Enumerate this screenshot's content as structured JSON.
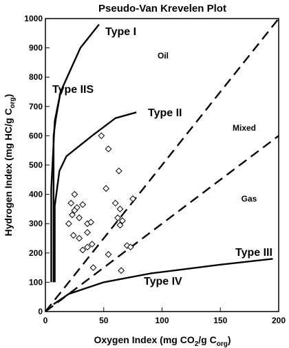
{
  "chart_data": {
    "type": "scatter",
    "title": "Pseudo-Van Krevelen Plot",
    "xlabel": {
      "main": "Oxygen Index (mg CO",
      "sub1": "2",
      "mid": "/g C",
      "sub2": "org",
      "end": ")"
    },
    "ylabel": {
      "main": "Hydrogen Index (mg HC/g C",
      "sub": "org",
      "end": ")"
    },
    "xlim": [
      0,
      200
    ],
    "ylim": [
      0,
      1000
    ],
    "xticks": [
      0,
      50,
      100,
      150,
      200
    ],
    "yticks": [
      0,
      100,
      200,
      300,
      400,
      500,
      600,
      700,
      800,
      900,
      1000
    ],
    "grid": false,
    "type_curves": [
      {
        "name": "Type I",
        "points": [
          [
            5,
            100
          ],
          [
            5,
            420
          ],
          [
            8,
            650
          ],
          [
            13,
            750
          ],
          [
            30,
            900
          ],
          [
            46,
            980
          ]
        ]
      },
      {
        "name": "Type IIS",
        "points": [
          [
            8,
            100
          ],
          [
            8,
            360
          ],
          [
            12,
            480
          ],
          [
            18,
            530
          ],
          [
            40,
            600
          ],
          [
            60,
            660
          ],
          [
            78,
            680
          ]
        ]
      },
      {
        "name": "Type II",
        "points": [
          [
            7,
            100
          ],
          [
            7,
            600
          ],
          [
            9,
            660
          ],
          [
            13,
            750
          ]
        ]
      },
      {
        "name": "Type III",
        "points": [
          [
            7,
            25
          ],
          [
            20,
            60
          ],
          [
            50,
            100
          ],
          [
            90,
            130
          ],
          [
            150,
            160
          ],
          [
            195,
            180
          ]
        ]
      }
    ],
    "boundary_lines": [
      {
        "points": [
          [
            0,
            0
          ],
          [
            200,
            1000
          ]
        ]
      },
      {
        "points": [
          [
            0,
            0
          ],
          [
            200,
            600
          ]
        ]
      }
    ],
    "labels": {
      "type_i": "Type I",
      "type_iis": "Type IIS",
      "type_ii": "Type II",
      "type_iii": "Type III",
      "type_iv": "Type IV",
      "oil": "Oil",
      "mixed": "Mixed",
      "gas": "Gas"
    },
    "series": [
      {
        "marker": "diamond",
        "points": [
          [
            48,
            600
          ],
          [
            54,
            555
          ],
          [
            63,
            480
          ],
          [
            25,
            400
          ],
          [
            22,
            370
          ],
          [
            27,
            355
          ],
          [
            25,
            345
          ],
          [
            32,
            365
          ],
          [
            23,
            330
          ],
          [
            29,
            320
          ],
          [
            36,
            300
          ],
          [
            39,
            305
          ],
          [
            20,
            300
          ],
          [
            36,
            270
          ],
          [
            24,
            260
          ],
          [
            40,
            230
          ],
          [
            29,
            250
          ],
          [
            32,
            210
          ],
          [
            36,
            220
          ],
          [
            52,
            420
          ],
          [
            60,
            370
          ],
          [
            64,
            350
          ],
          [
            66,
            310
          ],
          [
            64,
            295
          ],
          [
            75,
            385
          ],
          [
            62,
            320
          ],
          [
            41,
            150
          ],
          [
            54,
            195
          ],
          [
            70,
            225
          ],
          [
            73,
            220
          ],
          [
            65,
            140
          ]
        ]
      }
    ]
  }
}
